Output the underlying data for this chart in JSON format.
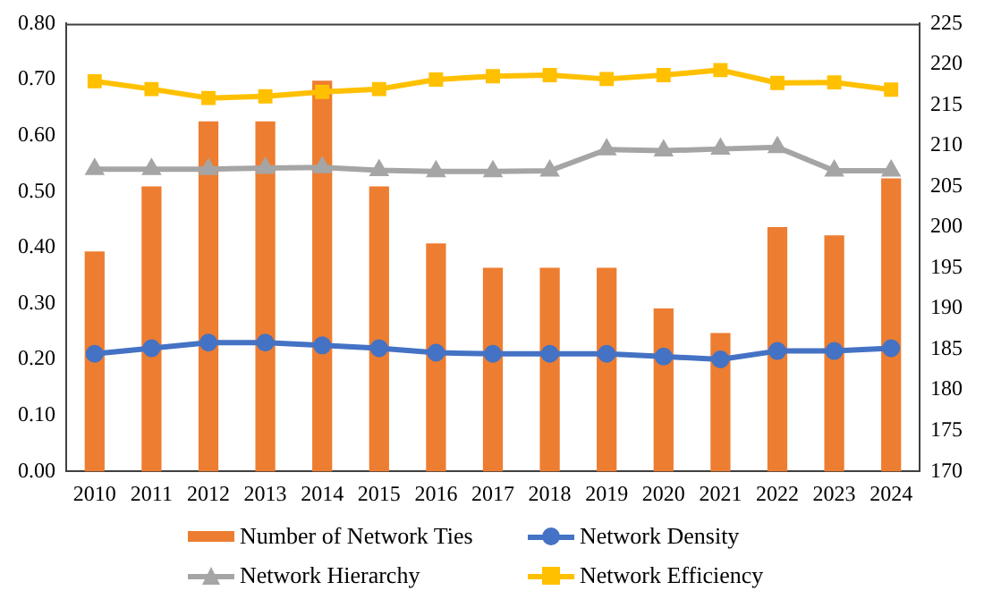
{
  "chart_data": {
    "type": "bar",
    "categories": [
      "2010",
      "2011",
      "2012",
      "2013",
      "2014",
      "2015",
      "2016",
      "2017",
      "2018",
      "2019",
      "2020",
      "2021",
      "2022",
      "2023",
      "2024"
    ],
    "series": [
      {
        "name": "Number of Network Ties",
        "axis": "y2",
        "color": "#ed7d31",
        "values": [
          197,
          205,
          213,
          213,
          218,
          205,
          198,
          195,
          195,
          195,
          190,
          187,
          200,
          199,
          206
        ]
      },
      {
        "name": "Network Density",
        "type": "line",
        "marker": "circle",
        "color": "#4472c4",
        "values": [
          0.21,
          0.22,
          0.23,
          0.23,
          0.225,
          0.22,
          0.212,
          0.21,
          0.21,
          0.21,
          0.205,
          0.2,
          0.215,
          0.215,
          0.22
        ]
      },
      {
        "name": "Network Hierarchy",
        "type": "line",
        "marker": "triangle",
        "color": "#a5a5a5",
        "values": [
          0.54,
          0.54,
          0.54,
          0.542,
          0.543,
          0.538,
          0.536,
          0.536,
          0.537,
          0.575,
          0.573,
          0.576,
          0.579,
          0.537,
          0.537
        ]
      },
      {
        "name": "Network Efficiency",
        "type": "line",
        "marker": "square",
        "color": "#ffc000",
        "values": [
          0.697,
          0.683,
          0.667,
          0.67,
          0.678,
          0.683,
          0.7,
          0.706,
          0.708,
          0.701,
          0.708,
          0.717,
          0.694,
          0.695,
          0.682
        ]
      }
    ],
    "ylim": [
      0,
      0.8
    ],
    "yticks": [
      {
        "value": 0,
        "label": "0.00"
      },
      {
        "value": 0.1,
        "label": "0.10"
      },
      {
        "value": 0.2,
        "label": "0.20"
      },
      {
        "value": 0.3,
        "label": "0.30"
      },
      {
        "value": 0.4,
        "label": "0.40"
      },
      {
        "value": 0.5,
        "label": "0.50"
      },
      {
        "value": 0.6,
        "label": "0.60"
      },
      {
        "value": 0.7,
        "label": "0.70"
      },
      {
        "value": 0.8,
        "label": "0.80"
      }
    ],
    "y2lim": [
      170,
      225
    ],
    "y2ticks": [
      170,
      175,
      180,
      185,
      190,
      195,
      200,
      205,
      210,
      215,
      220,
      225
    ],
    "grid": false,
    "legend": "bottom",
    "line_style": "solid"
  }
}
